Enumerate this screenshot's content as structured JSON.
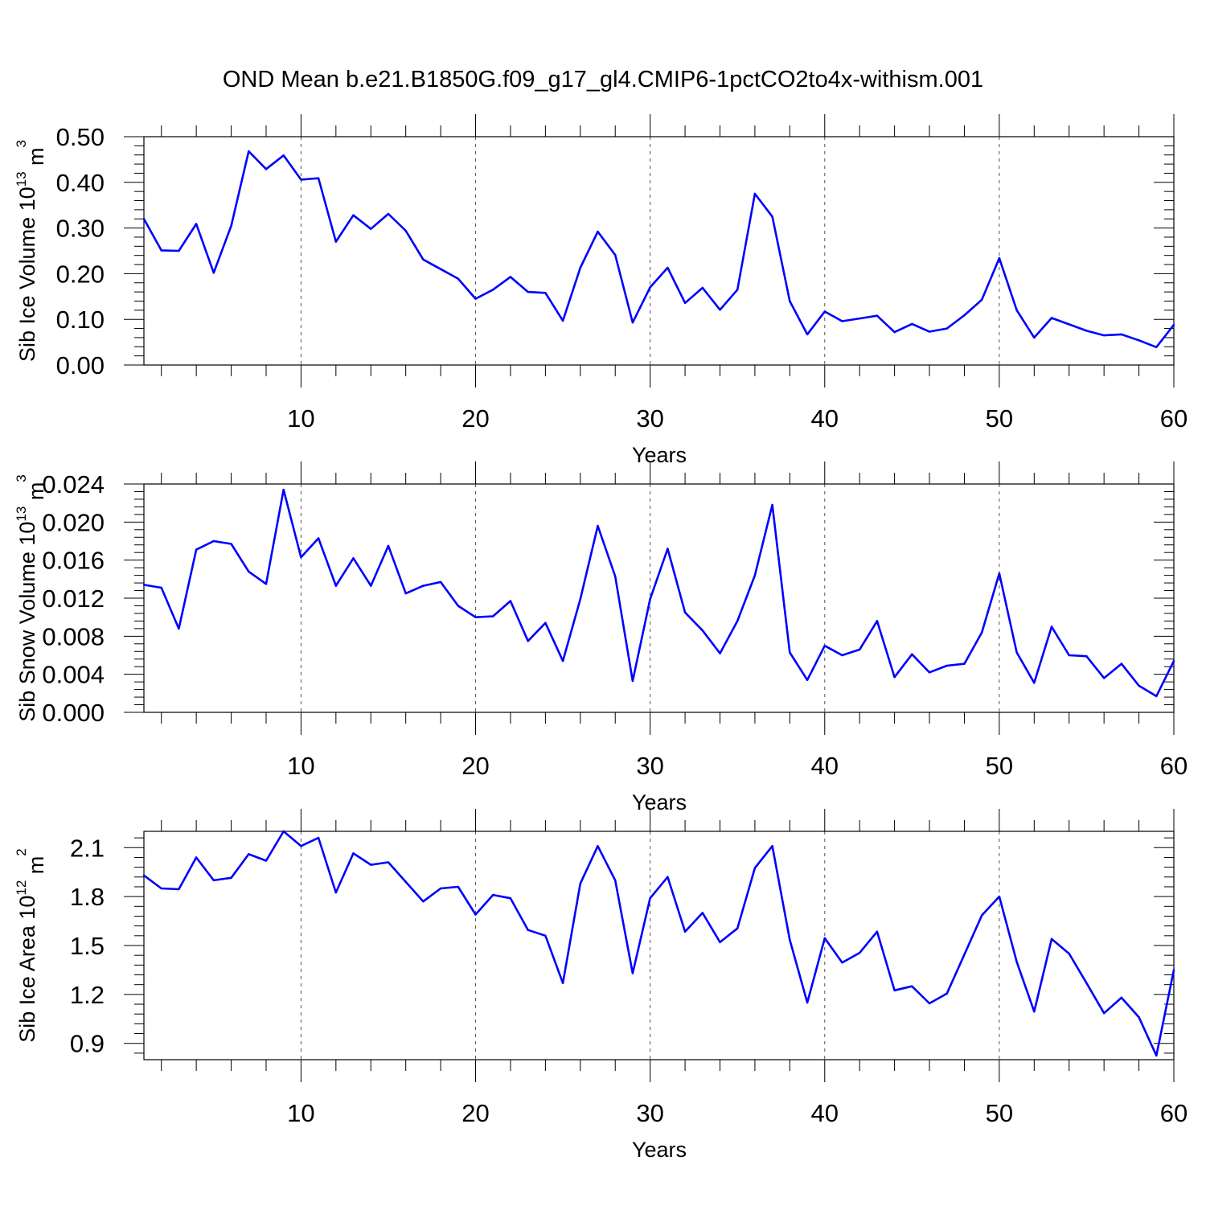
{
  "title": "OND Mean b.e21.B1850G.f09_g17_gl4.CMIP6-1pctCO2to4x-withism.001",
  "colors": {
    "line": "#0000ff",
    "axis": "#000000",
    "grid": "#555555",
    "background": "#ffffff"
  },
  "chart_data": [
    {
      "type": "line",
      "series_name": "Sib Ice Volume",
      "ylabel": {
        "main": "Sib Ice Volume 10",
        "exp": "13",
        "unit": " m",
        "unit_exp": "3"
      },
      "xlabel": "Years",
      "xlim": [
        1,
        60
      ],
      "ylim": [
        0,
        0.5
      ],
      "yticks": [
        0,
        0.1,
        0.2,
        0.3,
        0.4,
        0.5
      ],
      "ytick_labels": [
        "0.00",
        "0.10",
        "0.20",
        "0.30",
        "0.40",
        "0.50"
      ],
      "xticks": [
        10,
        20,
        30,
        40,
        50,
        60
      ],
      "xtick_labels": [
        "10",
        "20",
        "30",
        "40",
        "50",
        "60"
      ],
      "grid": "dashed vertical at major x ticks",
      "x": [
        1,
        2,
        3,
        4,
        5,
        6,
        7,
        8,
        9,
        10,
        11,
        12,
        13,
        14,
        15,
        16,
        17,
        18,
        19,
        20,
        21,
        22,
        23,
        24,
        25,
        26,
        27,
        28,
        29,
        30,
        31,
        32,
        33,
        34,
        35,
        36,
        37,
        38,
        39,
        40,
        41,
        42,
        43,
        44,
        45,
        46,
        47,
        48,
        49,
        50,
        51,
        52,
        53,
        54,
        55,
        56,
        57,
        58,
        59,
        60
      ],
      "values": [
        0.32,
        0.251,
        0.25,
        0.309,
        0.202,
        0.305,
        0.468,
        0.429,
        0.459,
        0.406,
        0.409,
        0.27,
        0.328,
        0.298,
        0.331,
        0.294,
        0.231,
        0.21,
        0.189,
        0.145,
        0.165,
        0.193,
        0.16,
        0.158,
        0.097,
        0.213,
        0.292,
        0.241,
        0.093,
        0.17,
        0.213,
        0.136,
        0.169,
        0.121,
        0.165,
        0.375,
        0.325,
        0.14,
        0.067,
        0.117,
        0.096,
        0.102,
        0.108,
        0.072,
        0.09,
        0.073,
        0.08,
        0.109,
        0.143,
        0.234,
        0.12,
        0.06,
        0.103,
        0.089,
        0.075,
        0.065,
        0.067,
        0.054,
        0.039,
        0.088
      ]
    },
    {
      "type": "line",
      "series_name": "Sib Snow Volume",
      "ylabel": {
        "main": "Sib Snow Volume 10",
        "exp": "13",
        "unit": " m",
        "unit_exp": "3"
      },
      "xlabel": "Years",
      "xlim": [
        1,
        60
      ],
      "ylim": [
        0,
        0.024
      ],
      "yticks": [
        0,
        0.004,
        0.008,
        0.012,
        0.016,
        0.02,
        0.024
      ],
      "ytick_labels": [
        "0.000",
        "0.004",
        "0.008",
        "0.012",
        "0.016",
        "0.020",
        "0.024"
      ],
      "xticks": [
        10,
        20,
        30,
        40,
        50,
        60
      ],
      "xtick_labels": [
        "10",
        "20",
        "30",
        "40",
        "50",
        "60"
      ],
      "grid": "dashed vertical at major x ticks",
      "x": [
        1,
        2,
        3,
        4,
        5,
        6,
        7,
        8,
        9,
        10,
        11,
        12,
        13,
        14,
        15,
        16,
        17,
        18,
        19,
        20,
        21,
        22,
        23,
        24,
        25,
        26,
        27,
        28,
        29,
        30,
        31,
        32,
        33,
        34,
        35,
        36,
        37,
        38,
        39,
        40,
        41,
        42,
        43,
        44,
        45,
        46,
        47,
        48,
        49,
        50,
        51,
        52,
        53,
        54,
        55,
        56,
        57,
        58,
        59,
        60
      ],
      "values": [
        0.0134,
        0.0131,
        0.0088,
        0.0171,
        0.018,
        0.0177,
        0.0148,
        0.0135,
        0.0234,
        0.0163,
        0.0183,
        0.0133,
        0.0162,
        0.0133,
        0.0175,
        0.0125,
        0.0133,
        0.0137,
        0.0112,
        0.01,
        0.0101,
        0.0117,
        0.0075,
        0.0094,
        0.0054,
        0.0119,
        0.0196,
        0.0143,
        0.0033,
        0.0119,
        0.0172,
        0.0105,
        0.0086,
        0.0062,
        0.0096,
        0.0144,
        0.0218,
        0.0063,
        0.0034,
        0.007,
        0.006,
        0.0066,
        0.0096,
        0.0037,
        0.0061,
        0.0042,
        0.0049,
        0.0051,
        0.0084,
        0.0146,
        0.0063,
        0.0031,
        0.009,
        0.006,
        0.0059,
        0.0036,
        0.0051,
        0.0028,
        0.0017,
        0.0054
      ]
    },
    {
      "type": "line",
      "series_name": "Sib Ice Area",
      "ylabel": {
        "main": "Sib Ice Area 10",
        "exp": "12",
        "unit": " m",
        "unit_exp": "2"
      },
      "xlabel": "Years",
      "xlim": [
        1,
        60
      ],
      "ylim": [
        0.8,
        2.2
      ],
      "yticks": [
        0.9,
        1.2,
        1.5,
        1.8,
        2.1
      ],
      "ytick_labels": [
        "0.9",
        "1.2",
        "1.5",
        "1.8",
        "2.1"
      ],
      "xticks": [
        10,
        20,
        30,
        40,
        50,
        60
      ],
      "xtick_labels": [
        "10",
        "20",
        "30",
        "40",
        "50",
        "60"
      ],
      "grid": "dashed vertical at major x ticks",
      "x": [
        1,
        2,
        3,
        4,
        5,
        6,
        7,
        8,
        9,
        10,
        11,
        12,
        13,
        14,
        15,
        16,
        17,
        18,
        19,
        20,
        21,
        22,
        23,
        24,
        25,
        26,
        27,
        28,
        29,
        30,
        31,
        32,
        33,
        34,
        35,
        36,
        37,
        38,
        39,
        40,
        41,
        42,
        43,
        44,
        45,
        46,
        47,
        48,
        49,
        50,
        51,
        52,
        53,
        54,
        55,
        56,
        57,
        58,
        59,
        60
      ],
      "values": [
        1.93,
        1.85,
        1.845,
        2.04,
        1.9,
        1.915,
        2.06,
        2.02,
        2.2,
        2.11,
        2.16,
        1.825,
        2.065,
        1.995,
        2.01,
        1.89,
        1.77,
        1.85,
        1.86,
        1.69,
        1.81,
        1.79,
        1.595,
        1.56,
        1.27,
        1.88,
        2.11,
        1.9,
        1.33,
        1.79,
        1.92,
        1.585,
        1.7,
        1.52,
        1.605,
        1.975,
        2.11,
        1.535,
        1.15,
        1.545,
        1.395,
        1.455,
        1.585,
        1.225,
        1.25,
        1.145,
        1.205,
        1.445,
        1.685,
        1.8,
        1.4,
        1.095,
        1.54,
        1.45,
        1.27,
        1.085,
        1.18,
        1.06,
        0.825,
        1.35
      ]
    }
  ]
}
